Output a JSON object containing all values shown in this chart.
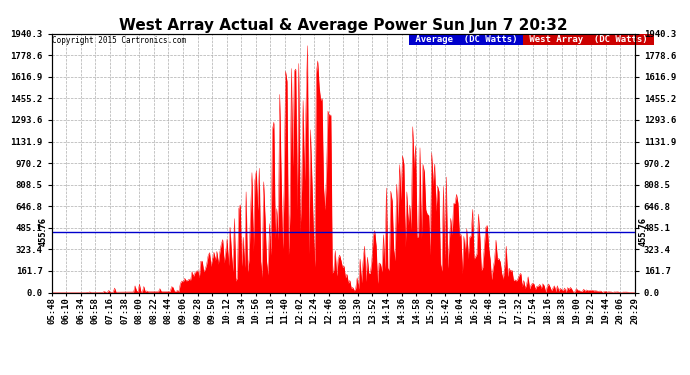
{
  "title": "West Array Actual & Average Power Sun Jun 7 20:32",
  "copyright": "Copyright 2015 Cartronics.com",
  "legend_avg_label": "Average  (DC Watts)",
  "legend_west_label": "West Array  (DC Watts)",
  "legend_avg_bg": "#0000cc",
  "legend_west_bg": "#cc0000",
  "yticks": [
    0.0,
    161.7,
    323.4,
    485.1,
    646.8,
    808.5,
    970.2,
    1131.9,
    1293.6,
    1455.2,
    1616.9,
    1778.6,
    1940.3
  ],
  "ymax": 1940.3,
  "ymin": 0.0,
  "hline_value": 455.76,
  "hline_label": "455.76",
  "fill_color": "#ff0000",
  "avg_line_color": "#0000cc",
  "background_color": "#ffffff",
  "grid_color": "#999999",
  "title_fontsize": 11,
  "tick_label_fontsize": 6.5,
  "xtick_labels": [
    "05:48",
    "06:10",
    "06:34",
    "06:58",
    "07:16",
    "07:38",
    "08:00",
    "08:22",
    "08:44",
    "09:06",
    "09:28",
    "09:50",
    "10:12",
    "10:34",
    "10:56",
    "11:18",
    "11:40",
    "12:02",
    "12:24",
    "12:46",
    "13:08",
    "13:30",
    "13:52",
    "14:14",
    "14:36",
    "14:58",
    "15:20",
    "15:42",
    "16:04",
    "16:26",
    "16:48",
    "17:10",
    "17:32",
    "17:54",
    "18:16",
    "18:38",
    "19:00",
    "19:22",
    "19:44",
    "20:06",
    "20:29"
  ],
  "num_points": 400
}
